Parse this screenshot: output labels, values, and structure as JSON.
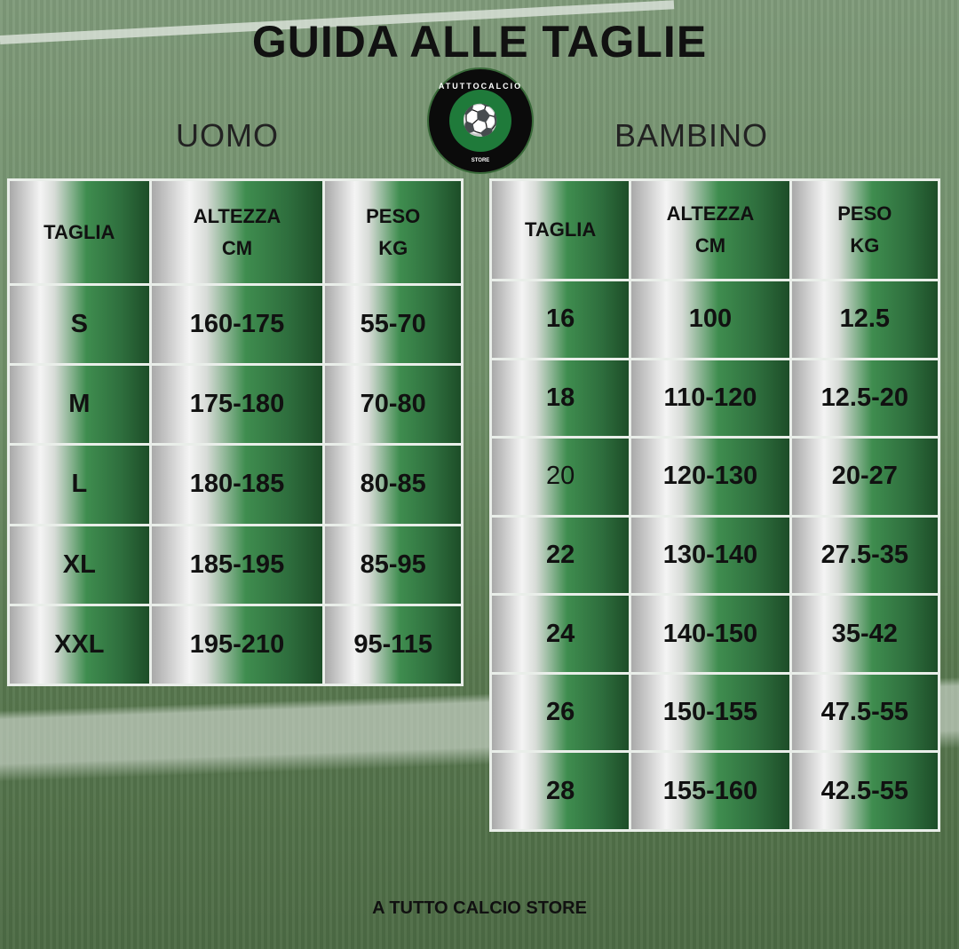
{
  "title": "GUIDA ALLE TAGLIE",
  "logo": {
    "text_top": "ATUTTOCALCIO",
    "text_bottom": "STORE",
    "icon": "soccer-player-icon"
  },
  "uomo": {
    "label": "UOMO",
    "headers": [
      "TAGLIA",
      "ALTEZZA\nCM",
      "PESO\nKG"
    ],
    "rows": [
      [
        "S",
        "160-175",
        "55-70"
      ],
      [
        "M",
        "175-180",
        "70-80"
      ],
      [
        "L",
        "180-185",
        "80-85"
      ],
      [
        "XL",
        "185-195",
        "85-95"
      ],
      [
        "XXL",
        "195-210",
        "95-115"
      ]
    ]
  },
  "bambino": {
    "label": "BAMBINO",
    "headers": [
      "TAGLIA",
      "ALTEZZA\nCM",
      "PESO\nKG"
    ],
    "rows": [
      [
        "16",
        "100",
        "12.5"
      ],
      [
        "18",
        "110-120",
        "12.5-20"
      ],
      [
        "20",
        "120-130",
        "20-27"
      ],
      [
        "22",
        "130-140",
        "27.5-35"
      ],
      [
        "24",
        "140-150",
        "35-42"
      ],
      [
        "26",
        "150-155",
        "47.5-55"
      ],
      [
        "28",
        "155-160",
        "42.5-55"
      ]
    ]
  },
  "footer": "A TUTTO CALCIO STORE",
  "colors": {
    "gradient_gray": "#a9a9a9",
    "gradient_white": "#f4f4f4",
    "gradient_green": "#3f8d4f",
    "gradient_dark": "#1d4d28"
  }
}
